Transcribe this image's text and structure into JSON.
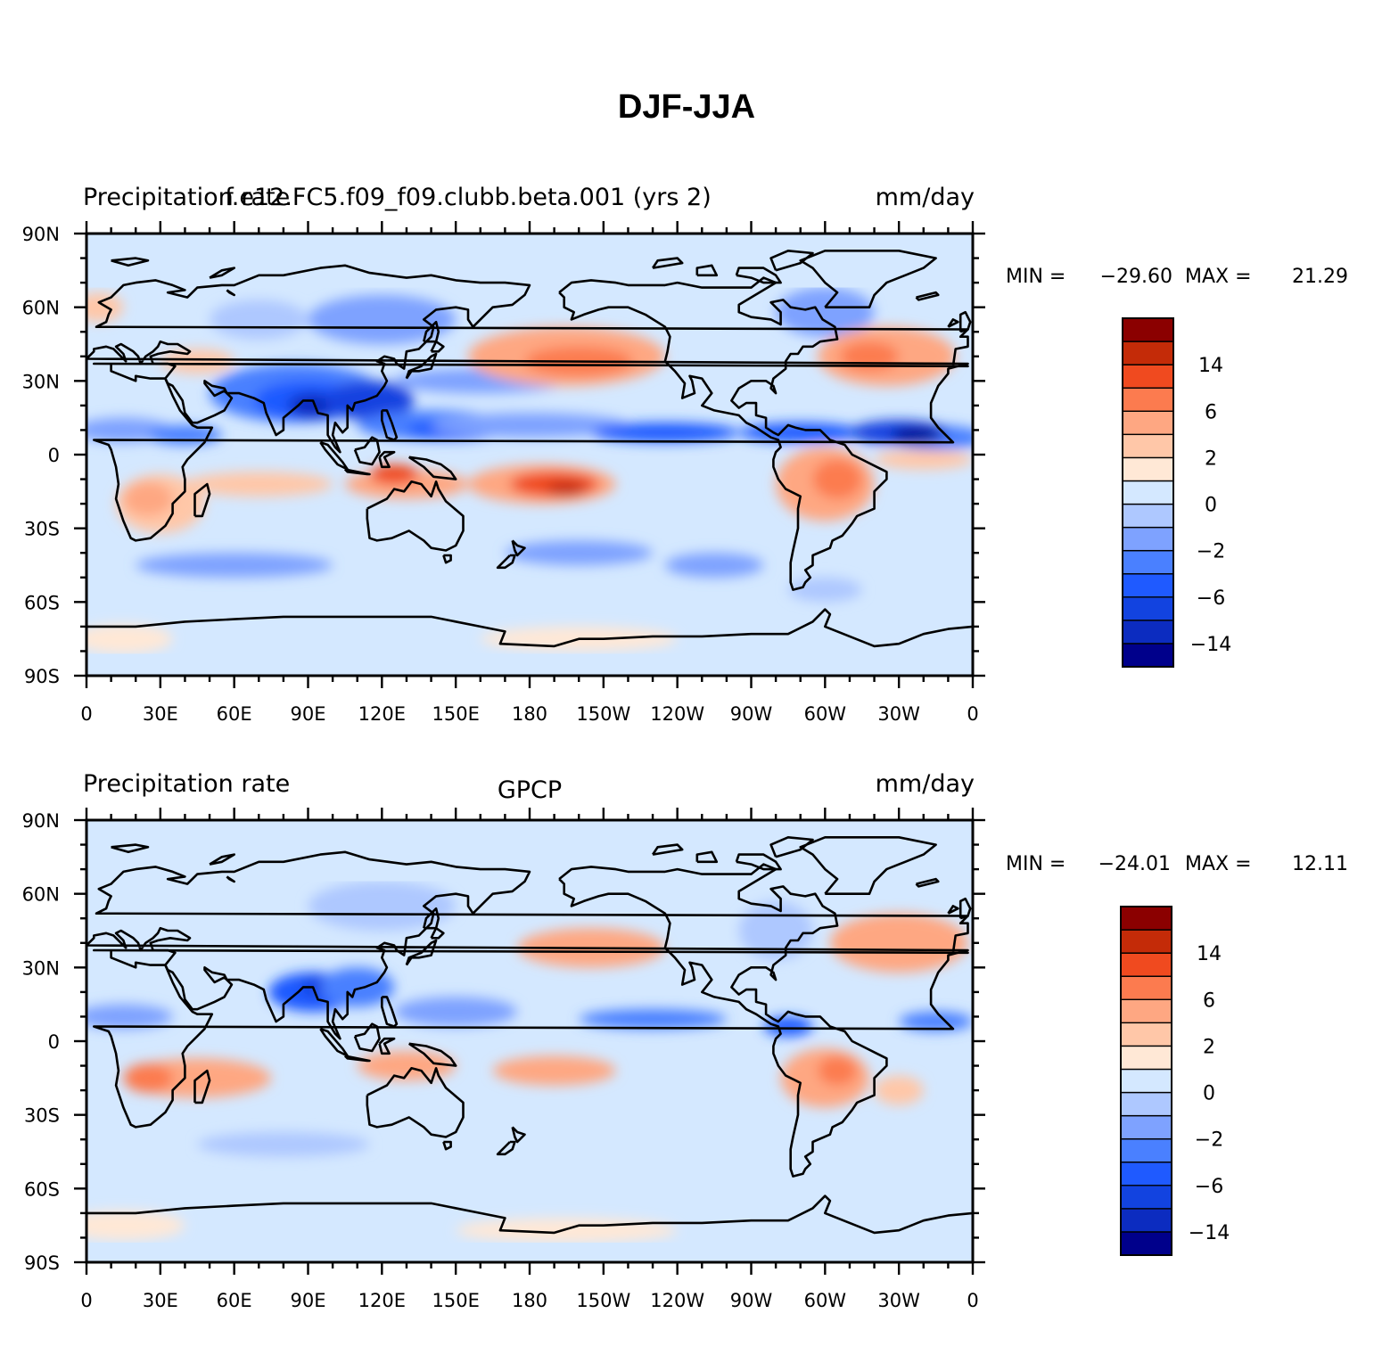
{
  "title": "DJF-JJA",
  "colors": {
    "levels": [
      "#00008b",
      "#0c2cc0",
      "#1243e0",
      "#1f5aff",
      "#4a80ff",
      "#7ea2ff",
      "#aec8ff",
      "#d4e8ff",
      "#ffe8d6",
      "#ffc7a8",
      "#fea782",
      "#fc7b4f",
      "#f04a1f",
      "#c42b08",
      "#8b0000"
    ],
    "coast": "#000000"
  },
  "chart_data": [
    {
      "type": "heatmap",
      "title_left": "Precipitation rate",
      "title_center": "f.e12.FC5.f09_f09.clubb.beta.001 (yrs 2)",
      "title_right": "mm/day",
      "xtick_labels": [
        "0",
        "30E",
        "60E",
        "90E",
        "120E",
        "150E",
        "180",
        "150W",
        "120W",
        "90W",
        "60W",
        "30W",
        "0"
      ],
      "ytick_labels": [
        "90N",
        "60N",
        "30N",
        "0",
        "30S",
        "60S",
        "90S"
      ],
      "xlim": [
        0,
        360
      ],
      "ylim": [
        -90,
        90
      ],
      "min_label": "MIN =",
      "min_value": "−29.60",
      "max_label": "MAX =",
      "max_value": "21.29",
      "colorbar_labels": [
        "14",
        "6",
        "2",
        "0",
        "−2",
        "−6",
        "−14"
      ],
      "contour_levels": [
        -20,
        -14,
        -10,
        -6,
        -4,
        -2,
        -1,
        0,
        1,
        2,
        4,
        6,
        10,
        14,
        20
      ]
    },
    {
      "type": "heatmap",
      "title_left": "Precipitation rate",
      "title_center": "GPCP",
      "title_right": "mm/day",
      "xtick_labels": [
        "0",
        "30E",
        "60E",
        "90E",
        "120E",
        "150E",
        "180",
        "150W",
        "120W",
        "90W",
        "60W",
        "30W",
        "0"
      ],
      "ytick_labels": [
        "90N",
        "60N",
        "30N",
        "0",
        "30S",
        "60S",
        "90S"
      ],
      "xlim": [
        0,
        360
      ],
      "ylim": [
        -90,
        90
      ],
      "min_label": "MIN =",
      "min_value": "−24.01",
      "max_label": "MAX =",
      "max_value": "12.11",
      "colorbar_labels": [
        "14",
        "6",
        "2",
        "0",
        "−2",
        "−6",
        "−14"
      ],
      "contour_levels": [
        -20,
        -14,
        -10,
        -6,
        -4,
        -2,
        -1,
        0,
        1,
        2,
        4,
        6,
        10,
        14,
        20
      ]
    }
  ]
}
